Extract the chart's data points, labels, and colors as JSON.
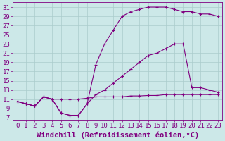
{
  "bg_color": "#cce8e8",
  "line_color": "#800080",
  "grid_color": "#aacccc",
  "xlabel": "Windchill (Refroidissement éolien,°C)",
  "xlabel_fontsize": 7.5,
  "tick_fontsize": 6.5,
  "ylim": [
    6.5,
    32
  ],
  "xlim": [
    -0.5,
    23.5
  ],
  "yticks": [
    7,
    9,
    11,
    13,
    15,
    17,
    19,
    21,
    23,
    25,
    27,
    29,
    31
  ],
  "xticks": [
    0,
    1,
    2,
    3,
    4,
    5,
    6,
    7,
    8,
    9,
    10,
    11,
    12,
    13,
    14,
    15,
    16,
    17,
    18,
    19,
    20,
    21,
    22,
    23
  ],
  "curve1_x": [
    0,
    1,
    2,
    3,
    4,
    5,
    6,
    7,
    8,
    9,
    10,
    11,
    12,
    13,
    14,
    15,
    16,
    17,
    18,
    19,
    20,
    21,
    22,
    23
  ],
  "curve1_y": [
    10.5,
    10,
    9.5,
    11.5,
    11,
    8,
    7.5,
    7.5,
    10,
    18.5,
    23,
    26,
    29,
    30,
    30.5,
    31,
    31,
    31,
    30.5,
    30,
    30,
    29.5,
    29.5,
    29
  ],
  "curve2_x": [
    0,
    1,
    2,
    3,
    4,
    5,
    6,
    7,
    8,
    9,
    10,
    11,
    12,
    13,
    14,
    15,
    16,
    17,
    18,
    19,
    20,
    21,
    22,
    23
  ],
  "curve2_y": [
    10.5,
    10,
    9.5,
    11.5,
    11,
    8,
    7.5,
    7.5,
    10,
    12,
    13,
    14.5,
    16,
    17.5,
    19,
    20.5,
    21,
    22,
    23,
    23,
    13.5,
    13.5,
    13,
    12.5
  ],
  "curve3_x": [
    0,
    1,
    2,
    3,
    4,
    5,
    6,
    7,
    8,
    9,
    10,
    11,
    12,
    13,
    14,
    15,
    16,
    17,
    18,
    19,
    20,
    21,
    22,
    23
  ],
  "curve3_y": [
    10.5,
    10,
    9.5,
    11.5,
    11,
    11,
    11,
    11,
    11.2,
    11.5,
    11.5,
    11.5,
    11.5,
    11.7,
    11.7,
    11.8,
    11.8,
    12,
    12,
    12,
    12,
    12,
    12,
    12
  ]
}
